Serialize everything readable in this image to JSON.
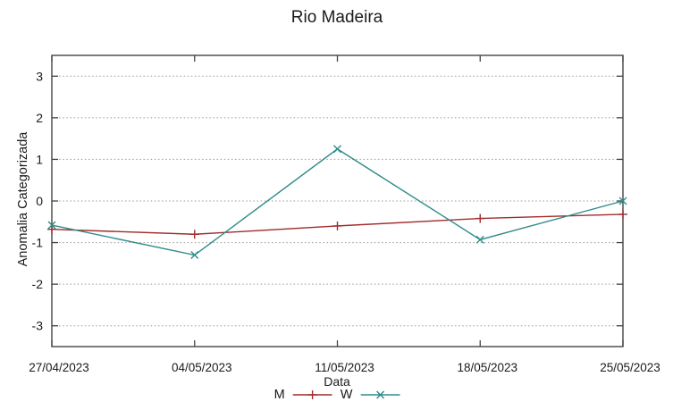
{
  "window": {
    "background": "#ffffff"
  },
  "chart_data": {
    "type": "line",
    "title": "Rio Madeira",
    "xlabel": "Data",
    "ylabel": "Anomalia Categorizada",
    "categories": [
      "27/04/2023",
      "04/05/2023",
      "11/05/2023",
      "18/05/2023",
      "25/05/2023"
    ],
    "y_ticks": [
      -3,
      -2,
      -1,
      0,
      1,
      2,
      3
    ],
    "ylim": [
      -3.5,
      3.5
    ],
    "grid": true,
    "grid_style": "dotted",
    "border_box": true,
    "legend_position": "bottom-center",
    "series": [
      {
        "name": "M",
        "color": "#a02c2c",
        "marker": "plus",
        "values": [
          -0.68,
          -0.8,
          -0.6,
          -0.42,
          -0.32
        ]
      },
      {
        "name": "W",
        "color": "#2e8b8a",
        "marker": "cross",
        "values": [
          -0.58,
          -1.3,
          1.25,
          -0.93,
          0.0
        ]
      }
    ]
  },
  "colors": {
    "axis_border": "#444444",
    "gridline": "#999999",
    "text": "#1a1a1a",
    "series_m": "#a02c2c",
    "series_w": "#2e8b8a"
  }
}
